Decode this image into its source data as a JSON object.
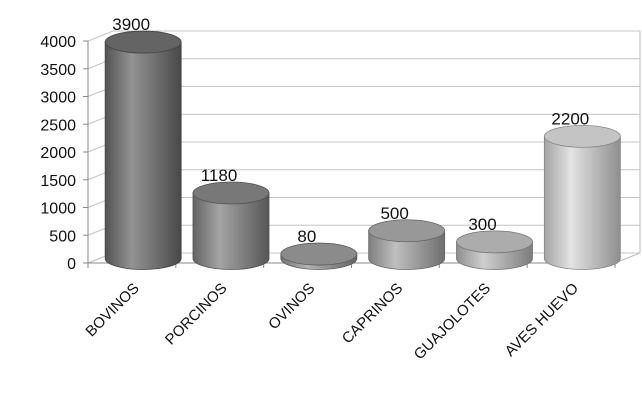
{
  "chart_data": {
    "type": "bar",
    "style": "3d-cylinder",
    "title": "",
    "xlabel": "",
    "ylabel": "",
    "categories": [
      "BOVINOS",
      "PORCINOS",
      "OVINOS",
      "CAPRINOS",
      "GUAJOLOTES",
      "AVES HUEVO"
    ],
    "values": [
      3900,
      1180,
      80,
      500,
      300,
      2200
    ],
    "data_labels": [
      "3900",
      "1180",
      "80",
      "500",
      "300",
      "2200"
    ],
    "yticks": [
      "0",
      "500",
      "1000",
      "1500",
      "2000",
      "2500",
      "3000",
      "3500",
      "4000"
    ],
    "ylim": [
      0,
      4000
    ],
    "grid": true,
    "legend": "none",
    "colors": [
      "#6f6f6f",
      "#858585",
      "#9a9a9a",
      "#a9a9a9",
      "#bfbfbf",
      "#dadada"
    ]
  }
}
